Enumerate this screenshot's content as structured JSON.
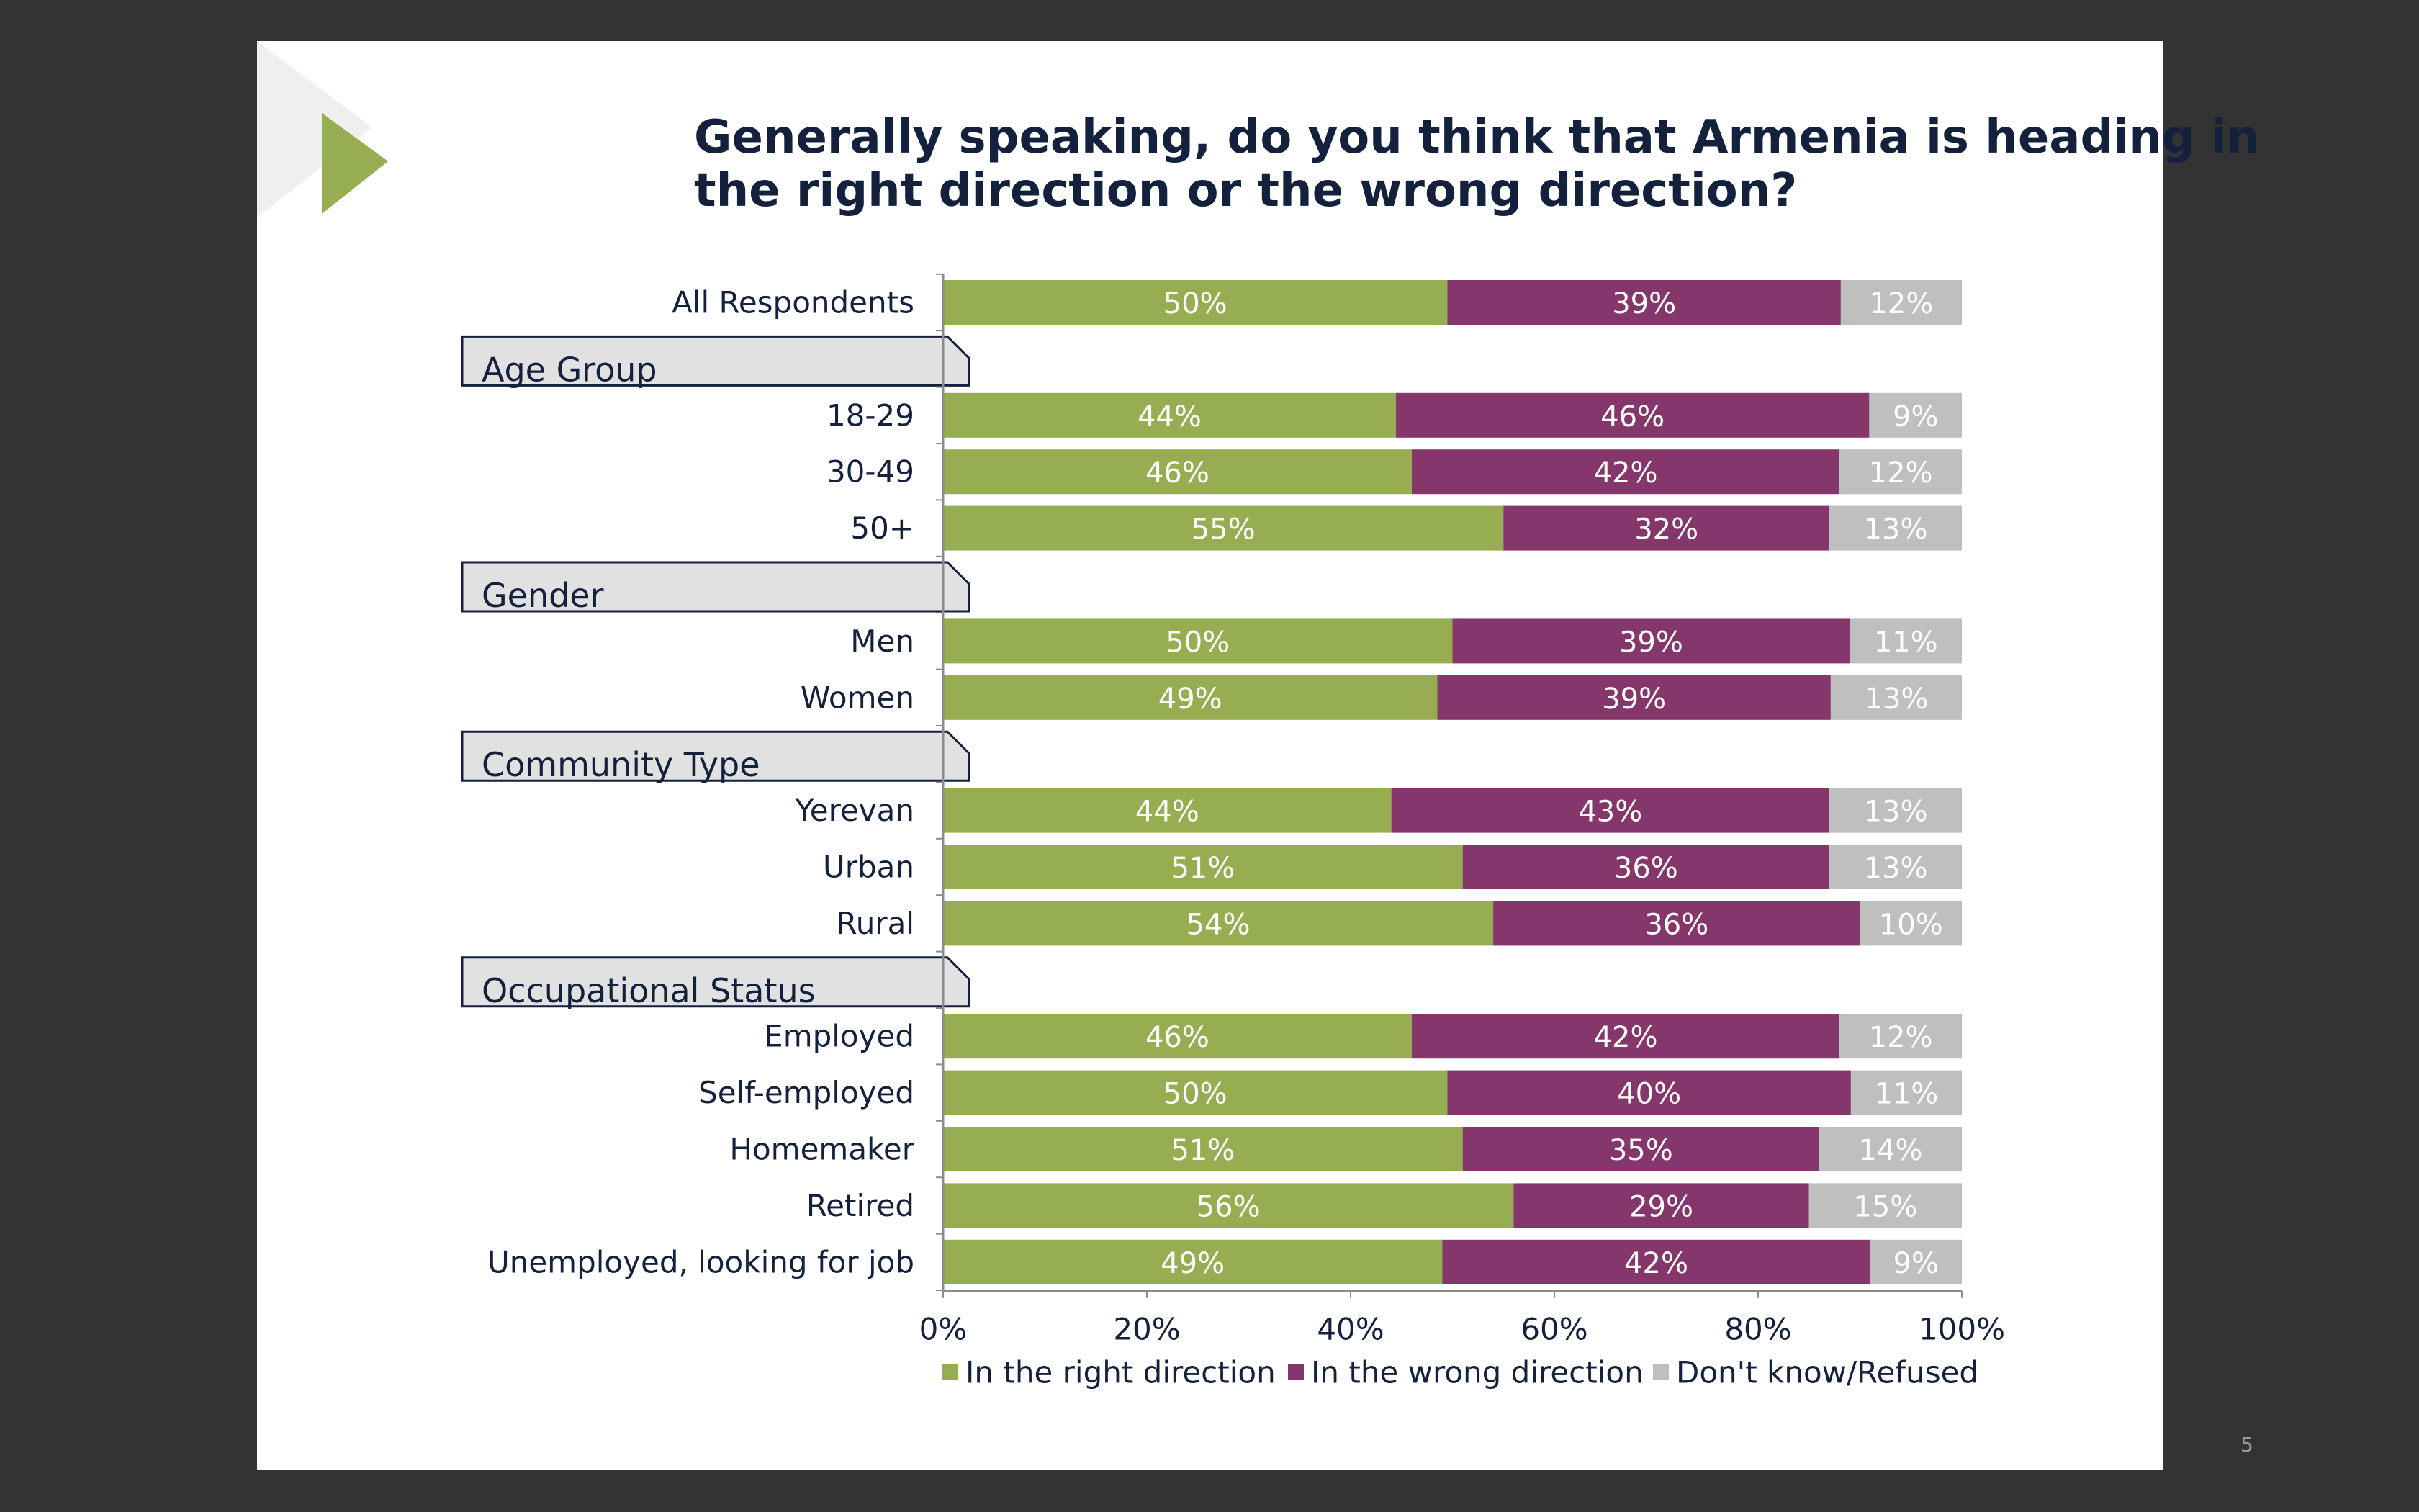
{
  "slide": {
    "title": "Generally speaking, do you think that Armenia is heading in the right direction or the wrong direction?",
    "page_number": "5"
  },
  "colors": {
    "right": "#97ad52",
    "wrong": "#85366b",
    "dont_know": "#bfbfbf",
    "title": "#14213d",
    "accent": "#97ad52",
    "group_box_fill": "#e1e1e1",
    "group_box_border": "#14213d"
  },
  "chart_data": {
    "type": "bar",
    "orientation": "horizontal",
    "stacked": true,
    "percent_stacked": true,
    "title": "Generally speaking, do you think that Armenia is heading in the right direction or the wrong direction?",
    "xlim": [
      0,
      100
    ],
    "x_ticks": [
      "0%",
      "20%",
      "40%",
      "60%",
      "80%",
      "100%"
    ],
    "legend_position": "bottom",
    "series": [
      {
        "name": "In the right direction",
        "key": "right"
      },
      {
        "name": "In the wrong direction",
        "key": "wrong"
      },
      {
        "name": "Don't know/Refused",
        "key": "dont_know"
      }
    ],
    "rows": [
      {
        "label": "All Respondents",
        "right": 50,
        "wrong": 39,
        "dont_know": 12
      },
      {
        "group": "Age Group"
      },
      {
        "label": "18-29",
        "right": 44,
        "wrong": 46,
        "dont_know": 9
      },
      {
        "label": "30-49",
        "right": 46,
        "wrong": 42,
        "dont_know": 12
      },
      {
        "label": "50+",
        "right": 55,
        "wrong": 32,
        "dont_know": 13
      },
      {
        "group": "Gender"
      },
      {
        "label": "Men",
        "right": 50,
        "wrong": 39,
        "dont_know": 11
      },
      {
        "label": "Women",
        "right": 49,
        "wrong": 39,
        "dont_know": 13
      },
      {
        "group": "Community Type"
      },
      {
        "label": "Yerevan",
        "right": 44,
        "wrong": 43,
        "dont_know": 13
      },
      {
        "label": "Urban",
        "right": 51,
        "wrong": 36,
        "dont_know": 13
      },
      {
        "label": "Rural",
        "right": 54,
        "wrong": 36,
        "dont_know": 10
      },
      {
        "group": "Occupational Status"
      },
      {
        "label": "Employed",
        "right": 46,
        "wrong": 42,
        "dont_know": 12
      },
      {
        "label": "Self-employed",
        "right": 50,
        "wrong": 40,
        "dont_know": 11
      },
      {
        "label": "Homemaker",
        "right": 51,
        "wrong": 35,
        "dont_know": 14
      },
      {
        "label": "Retired",
        "right": 56,
        "wrong": 29,
        "dont_know": 15
      },
      {
        "label": "Unemployed, looking for job",
        "right": 49,
        "wrong": 42,
        "dont_know": 9
      }
    ]
  }
}
